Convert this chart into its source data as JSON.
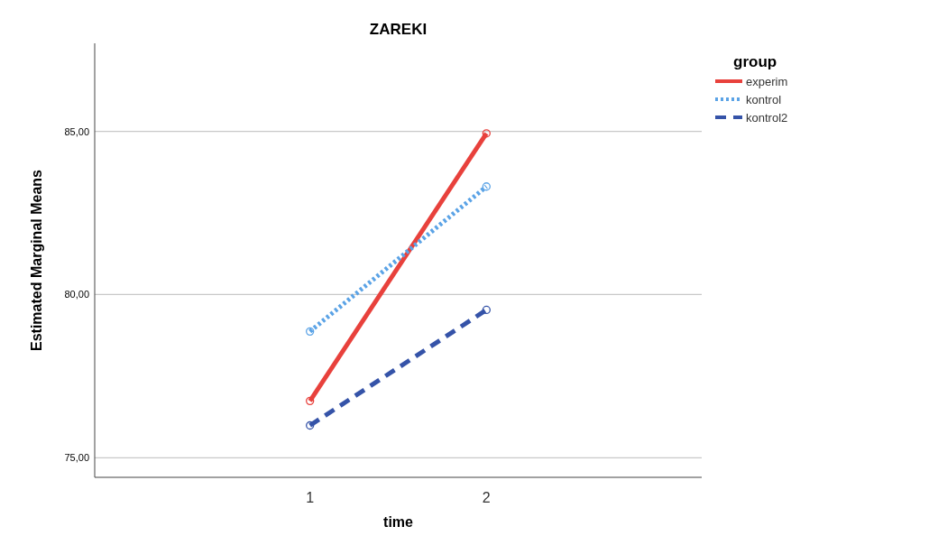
{
  "chart_data": {
    "type": "line",
    "title": "ZAREKI",
    "xlabel": "time",
    "ylabel": "Estimated Marginal Means",
    "legend_title": "group",
    "categories": [
      "1",
      "2"
    ],
    "series": [
      {
        "name": "experim",
        "color": "#e8413c",
        "line_style": "solid",
        "values": [
          76.74,
          84.94
        ]
      },
      {
        "name": "kontrol",
        "color": "#5ba3e6",
        "line_style": "dotted",
        "values": [
          78.87,
          83.31
        ]
      },
      {
        "name": "kontrol2",
        "color": "#3553a8",
        "line_style": "dashed",
        "values": [
          75.99,
          79.53
        ]
      }
    ],
    "ylim": [
      74.4,
      87.7
    ],
    "yticks": [
      {
        "value": 75,
        "label": "75,00"
      },
      {
        "value": 80,
        "label": "80,00"
      },
      {
        "value": 85,
        "label": "85,00"
      }
    ],
    "grid": "y",
    "legend": "top right",
    "marker": "circle"
  }
}
